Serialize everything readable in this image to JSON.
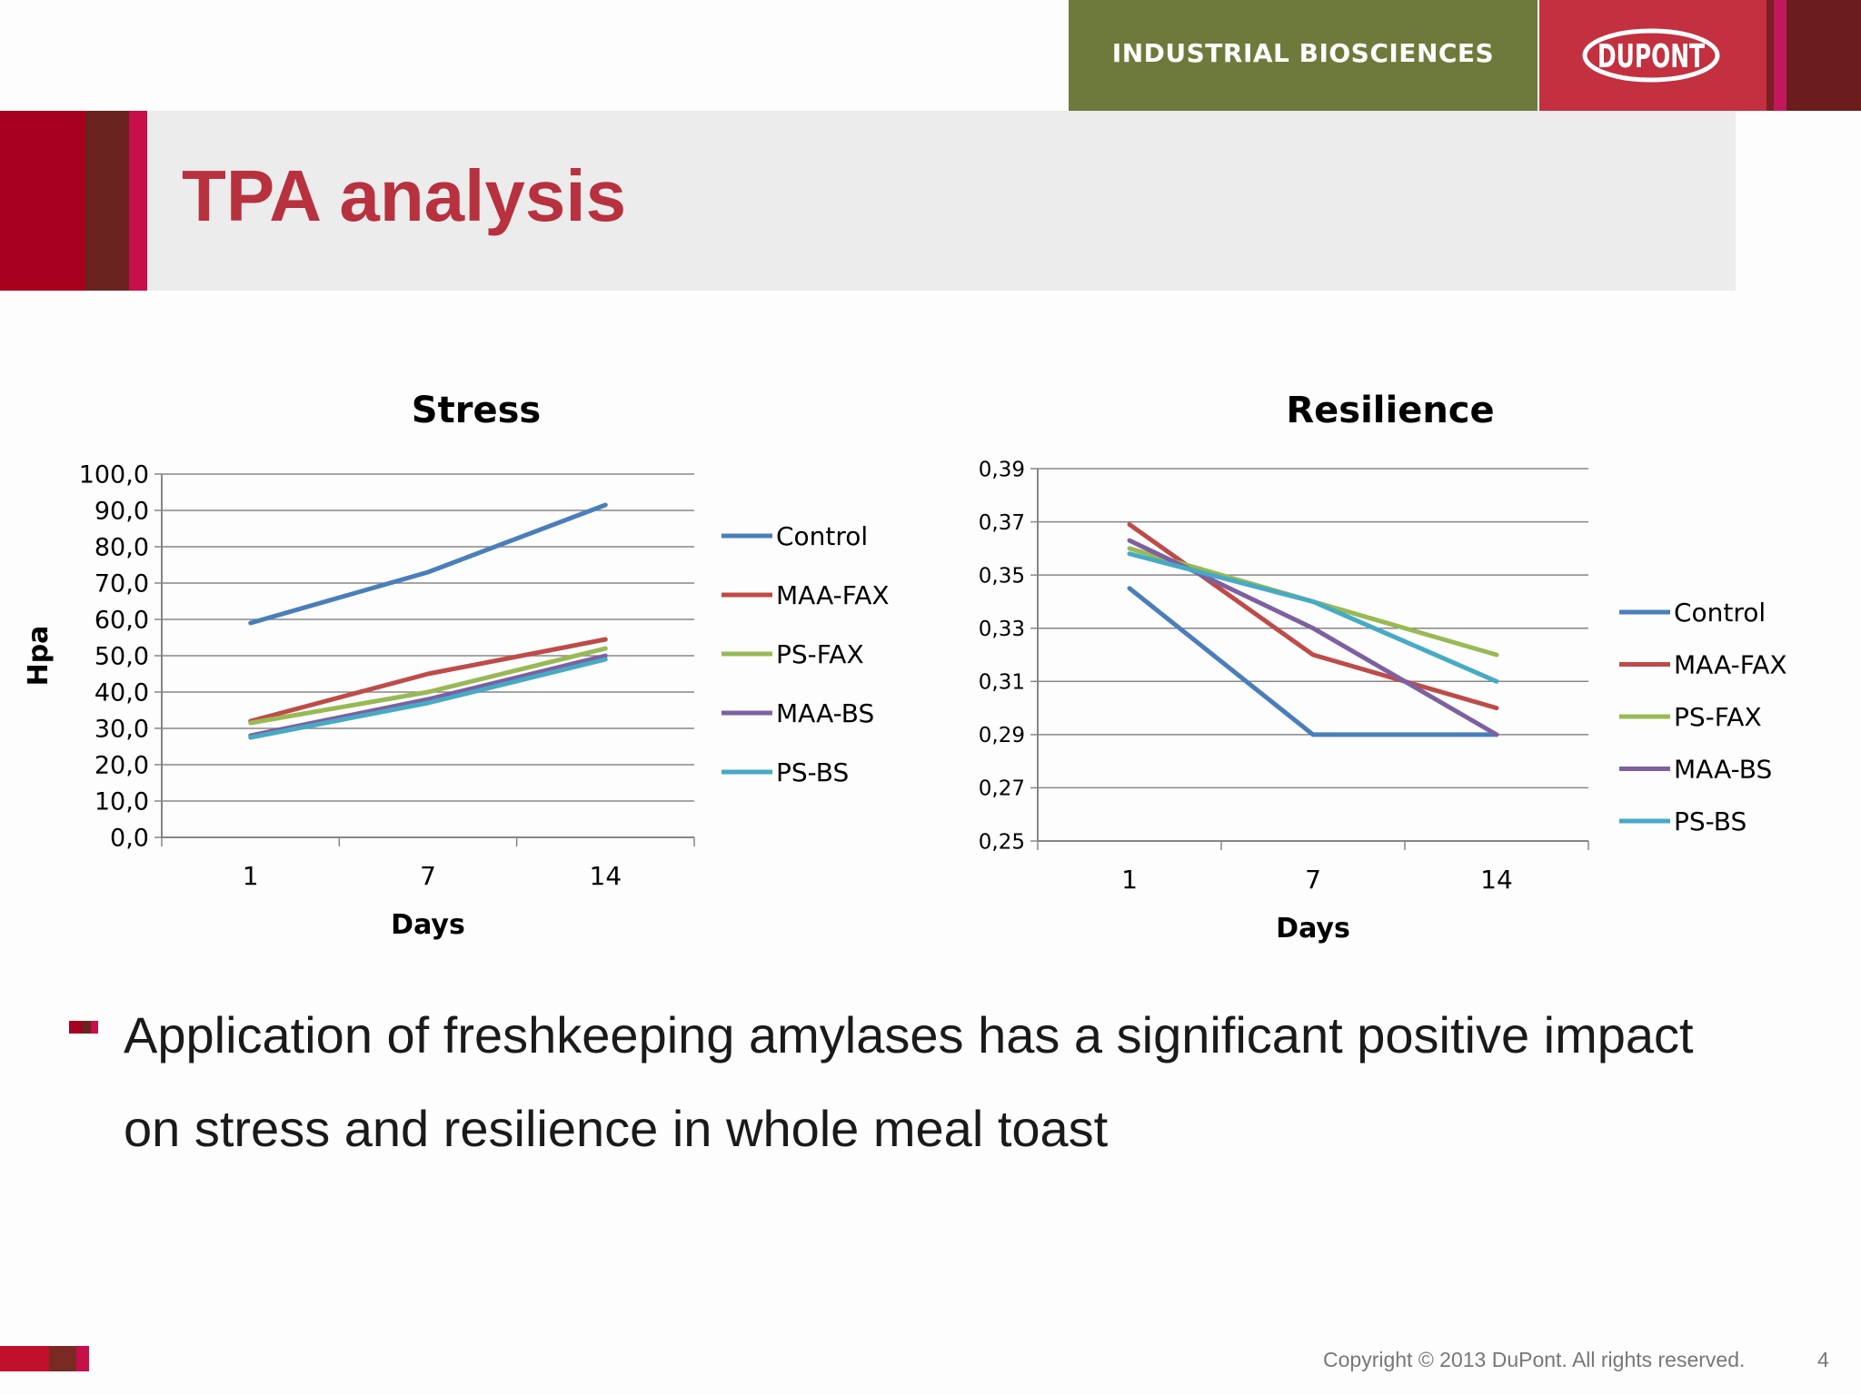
{
  "header": {
    "division": "INDUSTRIAL BIOSCIENCES",
    "logo_text": "DUPONT",
    "colors": {
      "olive": "#6e7a3b",
      "red": "#c3303f"
    }
  },
  "slide": {
    "title": "TPA analysis",
    "bullet": "Application of freshkeeping amylases has a significant positive impact on stress and resilience in whole meal toast",
    "copyright": "Copyright © 2013 DuPont.  All rights reserved.",
    "page_number": "4"
  },
  "chart_data": [
    {
      "type": "line",
      "title": "Stress",
      "xlabel": "Days",
      "ylabel": "Hpa",
      "categories": [
        "1",
        "7",
        "14"
      ],
      "ylim": [
        0,
        100
      ],
      "yticks": [
        "0,0",
        "10,0",
        "20,0",
        "30,0",
        "40,0",
        "50,0",
        "60,0",
        "70,0",
        "80,0",
        "90,0",
        "100,0"
      ],
      "grid": true,
      "legend": "right",
      "series": [
        {
          "name": "Control",
          "color": "#4a7ebb",
          "values": [
            59,
            73,
            91.5
          ]
        },
        {
          "name": "MAA-FAX",
          "color": "#be4b48",
          "values": [
            32,
            45,
            54.5
          ]
        },
        {
          "name": "PS-FAX",
          "color": "#98b954",
          "values": [
            31.5,
            40,
            52
          ]
        },
        {
          "name": "MAA-BS",
          "color": "#7d60a0",
          "values": [
            28,
            38,
            50
          ]
        },
        {
          "name": "PS-BS",
          "color": "#46aac5",
          "values": [
            27.5,
            37,
            49
          ]
        }
      ]
    },
    {
      "type": "line",
      "title": "Resilience",
      "xlabel": "Days",
      "ylabel": "",
      "categories": [
        "1",
        "7",
        "14"
      ],
      "ylim": [
        0.25,
        0.39
      ],
      "yticks": [
        "0,25",
        "0,27",
        "0,29",
        "0,31",
        "0,33",
        "0,35",
        "0,37",
        "0,39"
      ],
      "grid": true,
      "legend": "right",
      "series": [
        {
          "name": "Control",
          "color": "#4a7ebb",
          "values": [
            0.345,
            0.29,
            0.29
          ]
        },
        {
          "name": "MAA-FAX",
          "color": "#be4b48",
          "values": [
            0.369,
            0.32,
            0.3
          ]
        },
        {
          "name": "PS-FAX",
          "color": "#98b954",
          "values": [
            0.36,
            0.34,
            0.32
          ]
        },
        {
          "name": "MAA-BS",
          "color": "#7d60a0",
          "values": [
            0.363,
            0.33,
            0.29
          ]
        },
        {
          "name": "PS-BS",
          "color": "#46aac5",
          "values": [
            0.358,
            0.34,
            0.31
          ]
        }
      ]
    }
  ]
}
